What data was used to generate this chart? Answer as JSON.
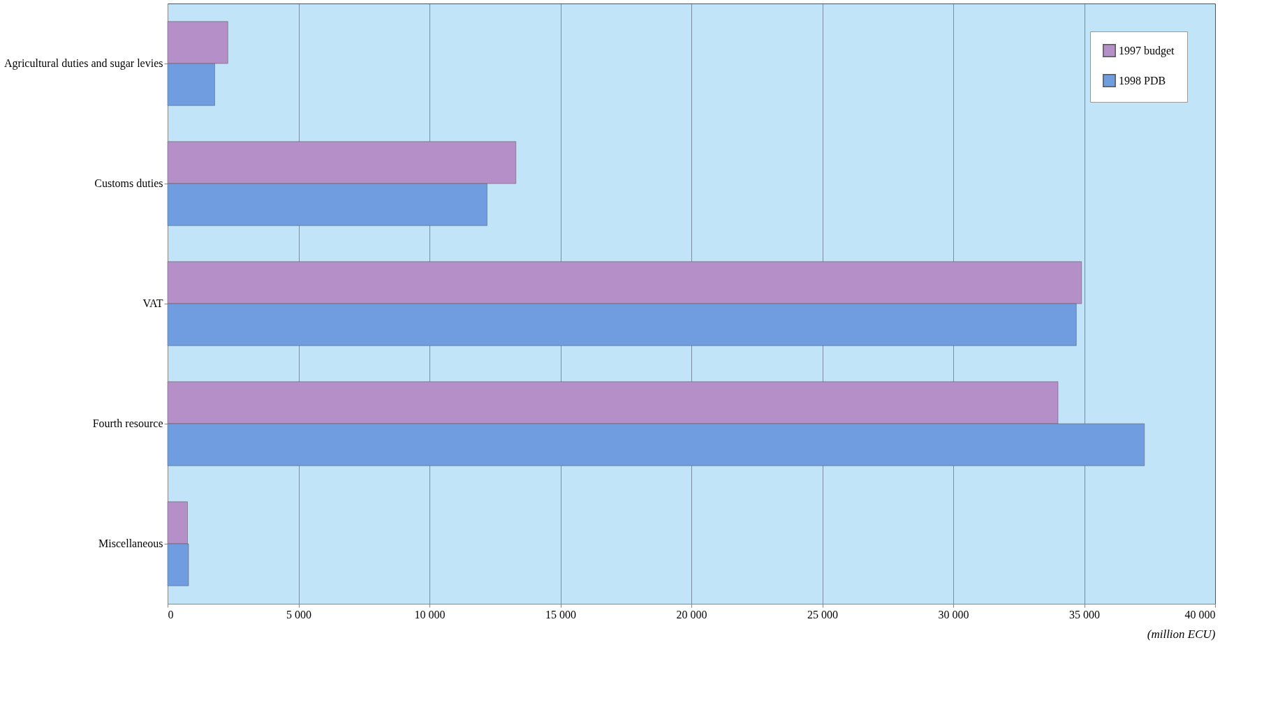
{
  "chart_data": {
    "type": "bar",
    "orientation": "horizontal",
    "categories": [
      "Agricultural duties and sugar levies",
      "Customs duties",
      "VAT",
      "Fourth resource",
      "Miscellaneous"
    ],
    "series": [
      {
        "name": "1997 budget",
        "color": "#b48fc8",
        "values": [
          2300,
          13300,
          34900,
          34000,
          760
        ]
      },
      {
        "name": "1998 PDB",
        "color": "#6f9de0",
        "values": [
          1800,
          12200,
          34700,
          37300,
          800
        ]
      }
    ],
    "xlabel": "(million ECU)",
    "xlim": [
      0,
      40000
    ],
    "xticks": [
      {
        "value": 0,
        "label": "0"
      },
      {
        "value": 5000,
        "label": "5 000"
      },
      {
        "value": 10000,
        "label": "10 000"
      },
      {
        "value": 15000,
        "label": "15 000"
      },
      {
        "value": 20000,
        "label": "20 000"
      },
      {
        "value": 25000,
        "label": "25 000"
      },
      {
        "value": 30000,
        "label": "30 000"
      },
      {
        "value": 35000,
        "label": "35 000"
      },
      {
        "value": 40000,
        "label": "40 000"
      }
    ],
    "grid": "x",
    "legend": "top right"
  }
}
